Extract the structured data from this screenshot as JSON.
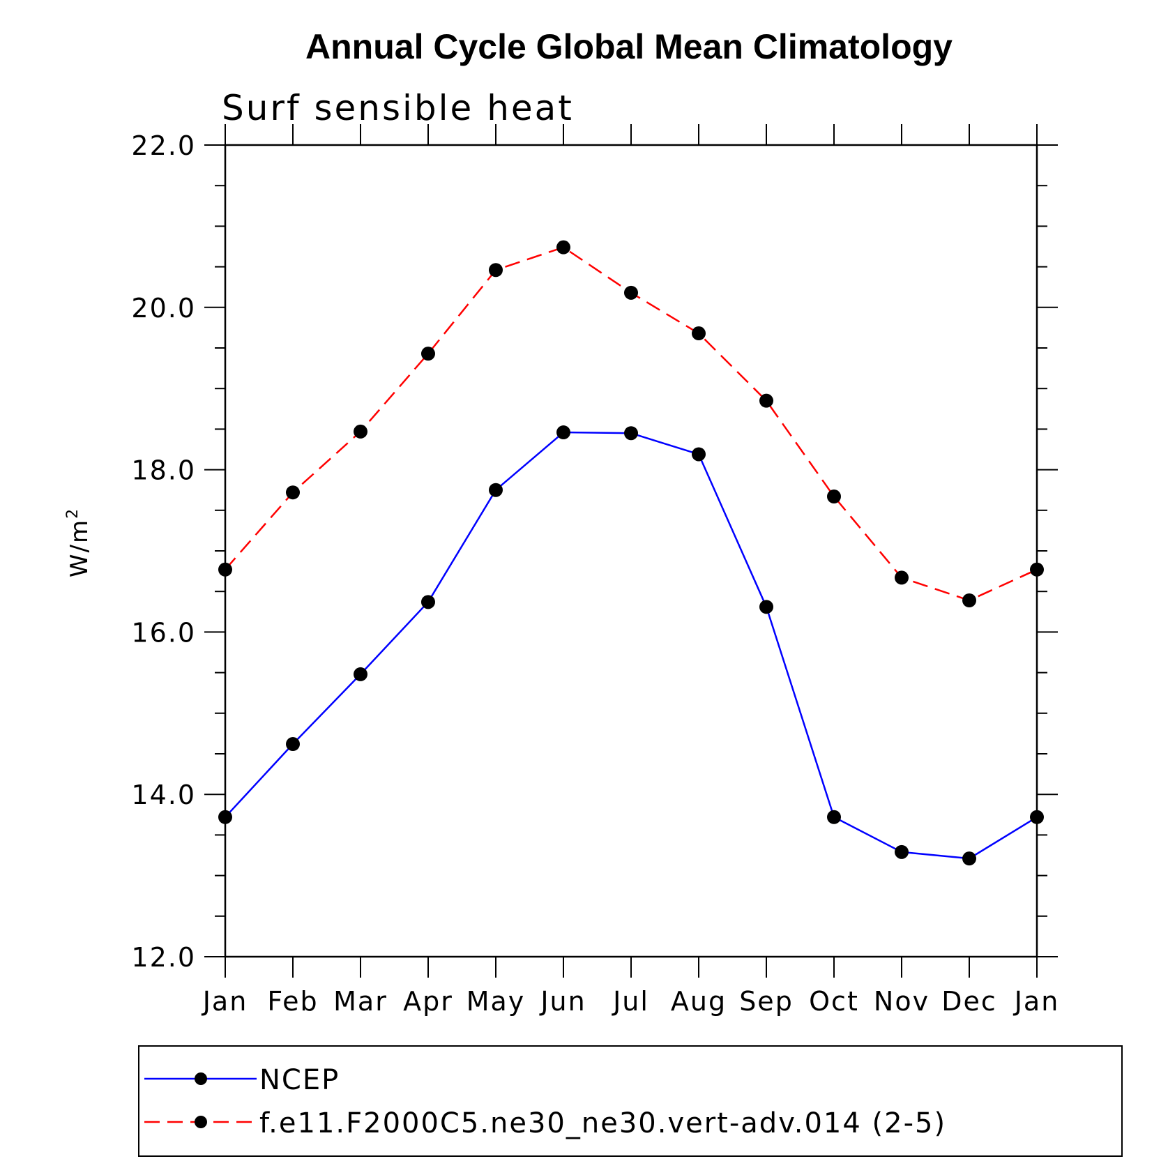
{
  "chart_data": {
    "type": "line",
    "title": "Annual Cycle Global Mean Climatology",
    "subtitle": "Surf sensible heat",
    "ylabel": "W/m",
    "ylabel_superscript": "2",
    "xlabel": "",
    "ylim": [
      12.0,
      22.0
    ],
    "yticks": [
      "12.0",
      "14.0",
      "16.0",
      "18.0",
      "20.0",
      "22.0"
    ],
    "categories": [
      "Jan",
      "Feb",
      "Mar",
      "Apr",
      "May",
      "Jun",
      "Jul",
      "Aug",
      "Sep",
      "Oct",
      "Nov",
      "Dec",
      "Jan"
    ],
    "series": [
      {
        "name": "NCEP",
        "color": "#0000ff",
        "dashed": false,
        "values": [
          13.72,
          14.62,
          15.48,
          16.37,
          17.75,
          18.46,
          18.45,
          18.19,
          16.31,
          13.72,
          13.29,
          13.21,
          13.72
        ]
      },
      {
        "name": "f.e11.F2000C5.ne30_ne30.vert-adv.014 (2-5)",
        "color": "#ff0000",
        "dashed": true,
        "values": [
          16.77,
          17.72,
          18.47,
          19.43,
          20.46,
          20.74,
          20.18,
          19.68,
          18.85,
          17.67,
          16.67,
          16.39,
          16.77
        ]
      }
    ],
    "marker_color": "#000000",
    "legend_position": "bottom"
  }
}
